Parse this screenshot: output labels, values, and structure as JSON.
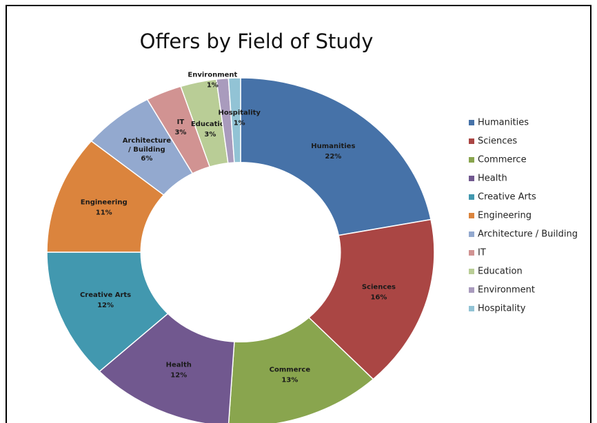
{
  "chart_data": {
    "type": "donut",
    "title": "Offers by Field of Study",
    "categories": [
      "Humanities",
      "Sciences",
      "Commerce",
      "Health",
      "Creative Arts",
      "Engineering",
      "Architecture / Building",
      "IT",
      "Education",
      "Environment",
      "Hospitality"
    ],
    "values": [
      22,
      16,
      13,
      12,
      12,
      11,
      6,
      3,
      3,
      1,
      1
    ],
    "value_labels": [
      "22%",
      "16%",
      "13%",
      "12%",
      "12%",
      "11%",
      "6%",
      "3%",
      "3%",
      "1%",
      "1%"
    ],
    "colors": [
      "#4672a8",
      "#aa4644",
      "#89a54e",
      "#71588f",
      "#4298af",
      "#db843d",
      "#93a9cf",
      "#d19392",
      "#b9cd96",
      "#a99bbd",
      "#92c3d5"
    ],
    "legend": "right"
  }
}
